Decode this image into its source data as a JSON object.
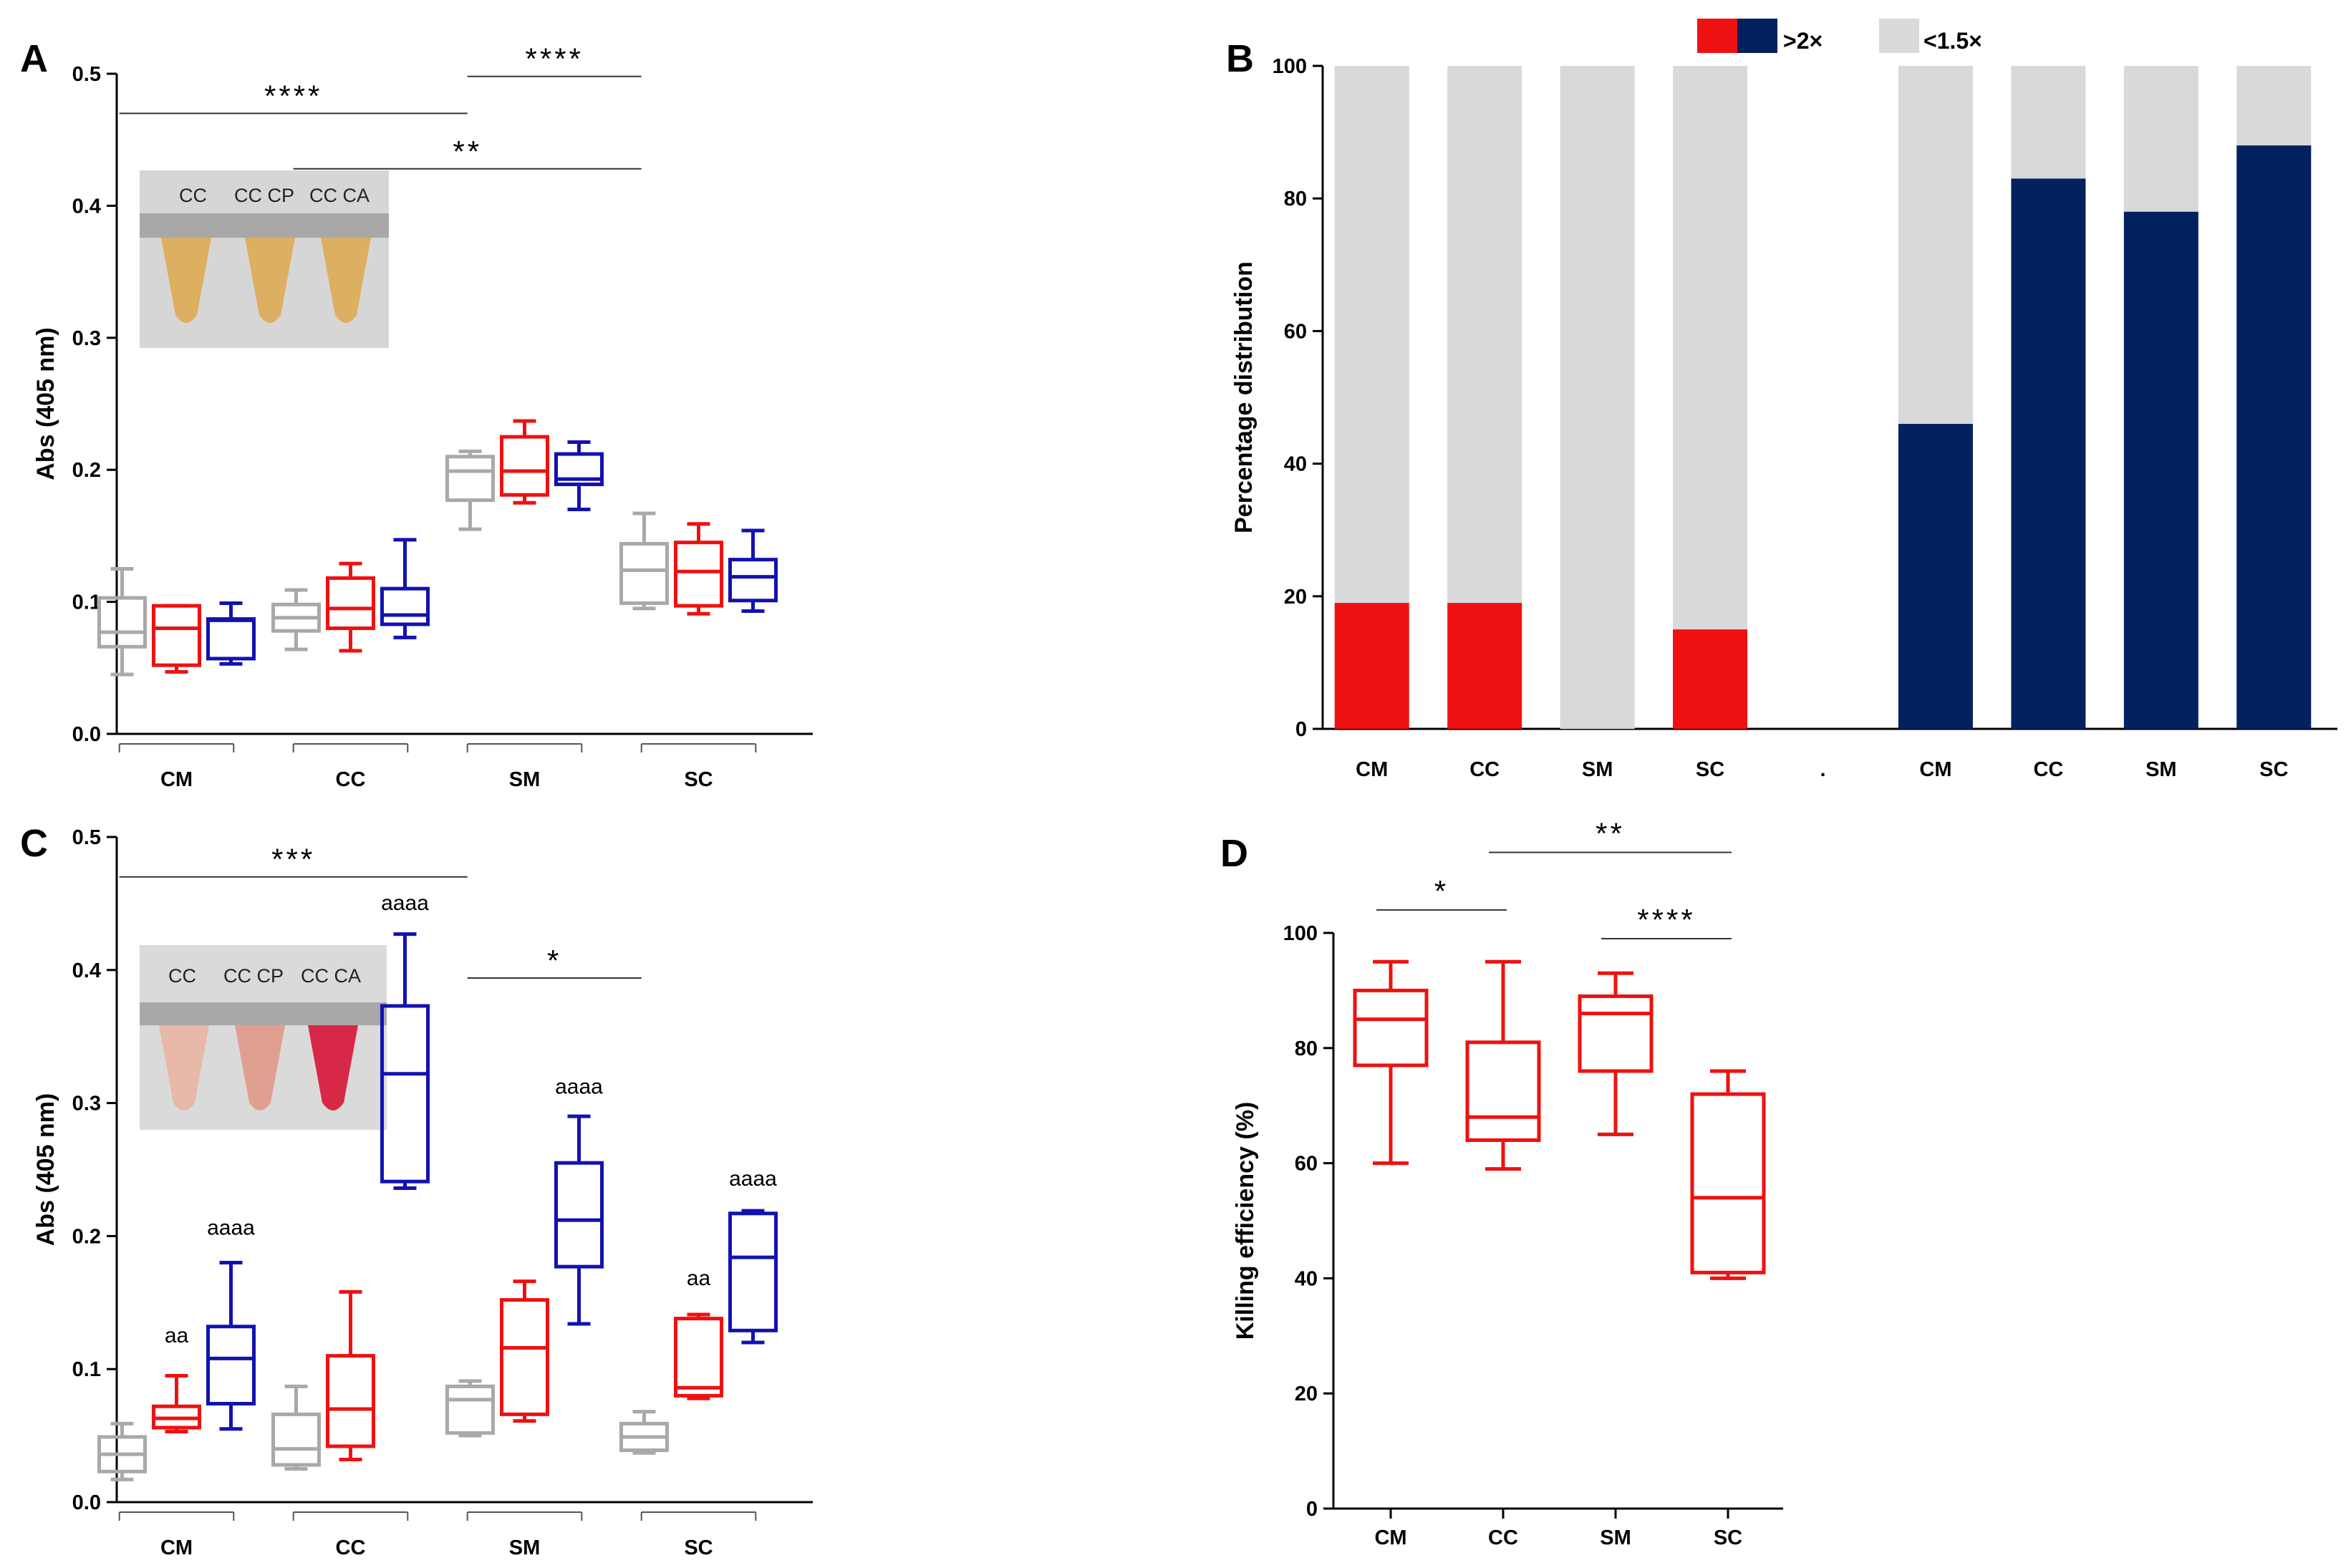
{
  "colors": {
    "gray": "#a9a9a9",
    "red": "#ee1111",
    "blue": "#1212b0",
    "navy": "#03215e",
    "lightgray": "#d9d9d9"
  },
  "inset_A": {
    "labels": [
      "CC",
      "CC CP",
      "CC CA"
    ],
    "tube_color": "#dcb060"
  },
  "inset_C": {
    "labels": [
      "CC",
      "CC CP",
      "CC CA"
    ],
    "tube_colors": [
      "#e8b8a8",
      "#e0a090",
      "#d82848"
    ]
  },
  "chart_data": [
    {
      "panel": "A",
      "type": "box",
      "ylabel": "Abs (405 nm)",
      "ylim": [
        0,
        0.5
      ],
      "yticks": [
        "0.0",
        "0.1",
        "0.2",
        "0.3",
        "0.4",
        "0.5"
      ],
      "groups": [
        "CM",
        "CC",
        "SM",
        "SC"
      ],
      "series_colors": [
        "gray",
        "red",
        "blue"
      ],
      "boxes": [
        {
          "group": "CM",
          "series": "gray",
          "min": 0.045,
          "q1": 0.066,
          "median": 0.077,
          "q3": 0.103,
          "max": 0.125
        },
        {
          "group": "CM",
          "series": "red",
          "min": 0.047,
          "q1": 0.052,
          "median": 0.08,
          "q3": 0.097,
          "max": 0.097
        },
        {
          "group": "CM",
          "series": "blue",
          "min": 0.053,
          "q1": 0.057,
          "median": 0.086,
          "q3": 0.087,
          "max": 0.099
        },
        {
          "group": "CC",
          "series": "gray",
          "min": 0.064,
          "q1": 0.078,
          "median": 0.088,
          "q3": 0.098,
          "max": 0.109
        },
        {
          "group": "CC",
          "series": "red",
          "min": 0.063,
          "q1": 0.08,
          "median": 0.095,
          "q3": 0.118,
          "max": 0.129
        },
        {
          "group": "CC",
          "series": "blue",
          "min": 0.073,
          "q1": 0.083,
          "median": 0.09,
          "q3": 0.11,
          "max": 0.147
        },
        {
          "group": "SM",
          "series": "gray",
          "min": 0.155,
          "q1": 0.177,
          "median": 0.199,
          "q3": 0.21,
          "max": 0.214
        },
        {
          "group": "SM",
          "series": "red",
          "min": 0.175,
          "q1": 0.181,
          "median": 0.199,
          "q3": 0.225,
          "max": 0.237
        },
        {
          "group": "SM",
          "series": "blue",
          "min": 0.17,
          "q1": 0.189,
          "median": 0.193,
          "q3": 0.212,
          "max": 0.221
        },
        {
          "group": "SC",
          "series": "gray",
          "min": 0.095,
          "q1": 0.099,
          "median": 0.124,
          "q3": 0.144,
          "max": 0.167
        },
        {
          "group": "SC",
          "series": "red",
          "min": 0.091,
          "q1": 0.097,
          "median": 0.123,
          "q3": 0.145,
          "max": 0.159
        },
        {
          "group": "SC",
          "series": "blue",
          "min": 0.093,
          "q1": 0.101,
          "median": 0.119,
          "q3": 0.132,
          "max": 0.154
        }
      ],
      "brackets": [
        {
          "from": "CM",
          "to": "SM",
          "label": "****",
          "y": 0.47
        },
        {
          "from": "SM",
          "to": "SC",
          "label": "****",
          "y": 0.498
        },
        {
          "from": "CC",
          "to": "SC",
          "label": "**",
          "y": 0.428
        }
      ],
      "annotations": []
    },
    {
      "panel": "B",
      "type": "stacked-bar",
      "ylabel": "Percentage distribution",
      "ylim": [
        0,
        100
      ],
      "yticks": [
        "0",
        "20",
        "40",
        "60",
        "80",
        "100"
      ],
      "categories": [
        "CM",
        "CC",
        "SM",
        "SC",
        ".",
        "CM",
        "CC",
        "SM",
        "SC"
      ],
      "series": [
        {
          "name": ">2×",
          "values": [
            19,
            19,
            0,
            15,
            null,
            46,
            83,
            78,
            88
          ],
          "colors": [
            "red",
            "red",
            "red",
            "red",
            "red",
            "navy",
            "navy",
            "navy",
            "navy"
          ]
        },
        {
          "name": "<1.5×",
          "values": [
            81,
            81,
            100,
            85,
            null,
            54,
            17,
            22,
            12
          ],
          "color": "lightgray"
        }
      ],
      "legend": [
        {
          "label": ">2×",
          "swatch": [
            "red",
            "navy"
          ]
        },
        {
          "label": "<1.5×",
          "swatch": [
            "lightgray"
          ]
        }
      ],
      "legend_position": "top"
    },
    {
      "panel": "C",
      "type": "box",
      "ylabel": "Abs (405 nm)",
      "ylim": [
        0,
        0.5
      ],
      "yticks": [
        "0.0",
        "0.1",
        "0.2",
        "0.3",
        "0.4",
        "0.5"
      ],
      "groups": [
        "CM",
        "CC",
        "SM",
        "SC"
      ],
      "series_colors": [
        "gray",
        "red",
        "blue"
      ],
      "boxes": [
        {
          "group": "CM",
          "series": "gray",
          "min": 0.017,
          "q1": 0.023,
          "median": 0.036,
          "q3": 0.049,
          "max": 0.059
        },
        {
          "group": "CM",
          "series": "red",
          "min": 0.053,
          "q1": 0.056,
          "median": 0.063,
          "q3": 0.072,
          "max": 0.095
        },
        {
          "group": "CM",
          "series": "blue",
          "min": 0.055,
          "q1": 0.074,
          "median": 0.108,
          "q3": 0.132,
          "max": 0.18
        },
        {
          "group": "CC",
          "series": "gray",
          "min": 0.025,
          "q1": 0.028,
          "median": 0.04,
          "q3": 0.066,
          "max": 0.087
        },
        {
          "group": "CC",
          "series": "red",
          "min": 0.032,
          "q1": 0.042,
          "median": 0.07,
          "q3": 0.11,
          "max": 0.158
        },
        {
          "group": "CC",
          "series": "blue",
          "min": 0.236,
          "q1": 0.241,
          "median": 0.322,
          "q3": 0.373,
          "max": 0.427
        },
        {
          "group": "SM",
          "series": "gray",
          "min": 0.05,
          "q1": 0.052,
          "median": 0.077,
          "q3": 0.087,
          "max": 0.091
        },
        {
          "group": "SM",
          "series": "red",
          "min": 0.061,
          "q1": 0.066,
          "median": 0.116,
          "q3": 0.152,
          "max": 0.166
        },
        {
          "group": "SM",
          "series": "blue",
          "min": 0.134,
          "q1": 0.177,
          "median": 0.212,
          "q3": 0.255,
          "max": 0.29
        },
        {
          "group": "SC",
          "series": "gray",
          "min": 0.037,
          "q1": 0.039,
          "median": 0.049,
          "q3": 0.059,
          "max": 0.068
        },
        {
          "group": "SC",
          "series": "red",
          "min": 0.078,
          "q1": 0.08,
          "median": 0.086,
          "q3": 0.138,
          "max": 0.141
        },
        {
          "group": "SC",
          "series": "blue",
          "min": 0.12,
          "q1": 0.129,
          "median": 0.184,
          "q3": 0.217,
          "max": 0.219
        }
      ],
      "brackets": [
        {
          "from": "CM",
          "to": "SM",
          "label": "***",
          "y": 0.47
        },
        {
          "from": "SM",
          "to": "SC",
          "label": "*",
          "y": 0.394
        }
      ],
      "annotations": [
        {
          "group": "CM",
          "series": "red",
          "text": "aa",
          "y": 0.12
        },
        {
          "group": "CM",
          "series": "blue",
          "text": "aaaa",
          "y": 0.201
        },
        {
          "group": "CC",
          "series": "blue",
          "text": "aaaa",
          "y": 0.445
        },
        {
          "group": "SM",
          "series": "blue",
          "text": "aaaa",
          "y": 0.307
        },
        {
          "group": "SC",
          "series": "red",
          "text": "aa",
          "y": 0.163
        },
        {
          "group": "SC",
          "series": "blue",
          "text": "aaaa",
          "y": 0.238
        }
      ]
    },
    {
      "panel": "D",
      "type": "box",
      "ylabel": "Killing efficiency (%)",
      "ylim": [
        0,
        100
      ],
      "yticks": [
        "0",
        "20",
        "40",
        "60",
        "80",
        "100"
      ],
      "categories": [
        "CM",
        "CC",
        "SM",
        "SC"
      ],
      "boxes": [
        {
          "group": "CM",
          "min": 60,
          "q1": 77,
          "median": 85,
          "q3": 90,
          "max": 95
        },
        {
          "group": "CC",
          "min": 59,
          "q1": 64,
          "median": 68,
          "q3": 81,
          "max": 95
        },
        {
          "group": "SM",
          "min": 65,
          "q1": 76,
          "median": 86,
          "q3": 89,
          "max": 93
        },
        {
          "group": "SC",
          "min": 40,
          "q1": 41,
          "median": 54,
          "q3": 72,
          "max": 76
        }
      ],
      "brackets": [
        {
          "from": "CM",
          "to": "CC",
          "label": "*",
          "y": 104
        },
        {
          "from": "CC",
          "to": "SC",
          "label": "**",
          "y": 114
        },
        {
          "from": "SM",
          "to": "SC",
          "label": "****",
          "y": 99
        }
      ]
    }
  ]
}
